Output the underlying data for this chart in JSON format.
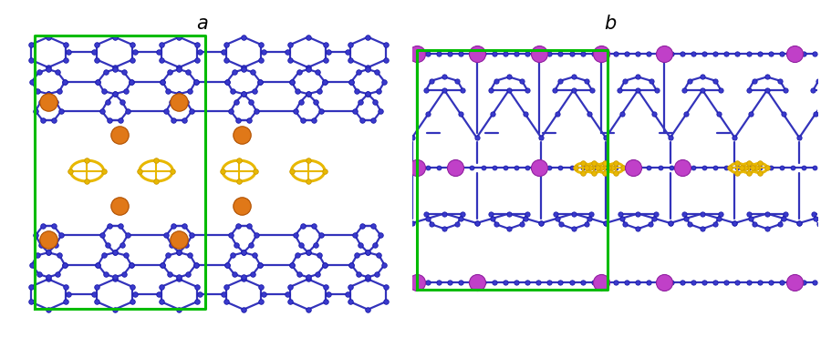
{
  "fig_width": 9.0,
  "fig_height": 3.7,
  "dpi": 100,
  "bg_color": "#ffffff",
  "label_a": "a",
  "label_b": "b",
  "label_fontsize": 15,
  "blue_c": "#3a3acc",
  "blue_ec": "#1a1aaa",
  "bond_c": "#3333bb",
  "bond_lw": 1.6,
  "orange_c": "#e07818",
  "yellow_c": "#e8b800",
  "purple_c": "#c040c8",
  "purple_ec": "#9020a0",
  "green_c": "#00bb00",
  "green_lw": 2.2
}
